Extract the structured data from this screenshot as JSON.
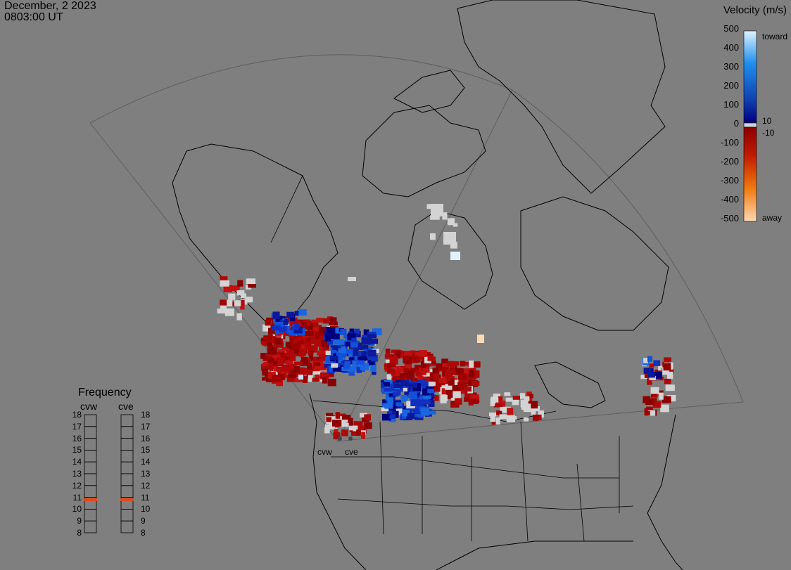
{
  "header": {
    "date": "December, 2 2023",
    "time": "0803:00 UT"
  },
  "colorbar": {
    "title": "Velocity (m/s)",
    "ticks": [
      "500",
      "400",
      "300",
      "200",
      "100",
      "0",
      "-100",
      "-200",
      "-300",
      "-400",
      "-500"
    ],
    "toward_label": "toward",
    "away_label": "away",
    "threshold_pos": "10",
    "threshold_neg": "-10",
    "colors": {
      "toward_high": "#dff3ff",
      "toward_mid": "#1f8fee",
      "toward_low": "#00007f",
      "ground_scatter": "#d3d3d3",
      "away_low": "#8b0000",
      "away_mid": "#e05a0a",
      "away_high": "#ffd9b3"
    }
  },
  "frequency": {
    "title": "Frequency",
    "radars": [
      "cvw",
      "cve"
    ],
    "scale": [
      "18",
      "17",
      "16",
      "15",
      "14",
      "13",
      "12",
      "11",
      "10",
      "9",
      "8"
    ],
    "selected_mhz": {
      "cvw": 10.8,
      "cve": 10.8
    },
    "marker_color": "#e04a1a"
  },
  "map": {
    "radar_site_labels": [
      "cvw",
      "cve"
    ]
  }
}
